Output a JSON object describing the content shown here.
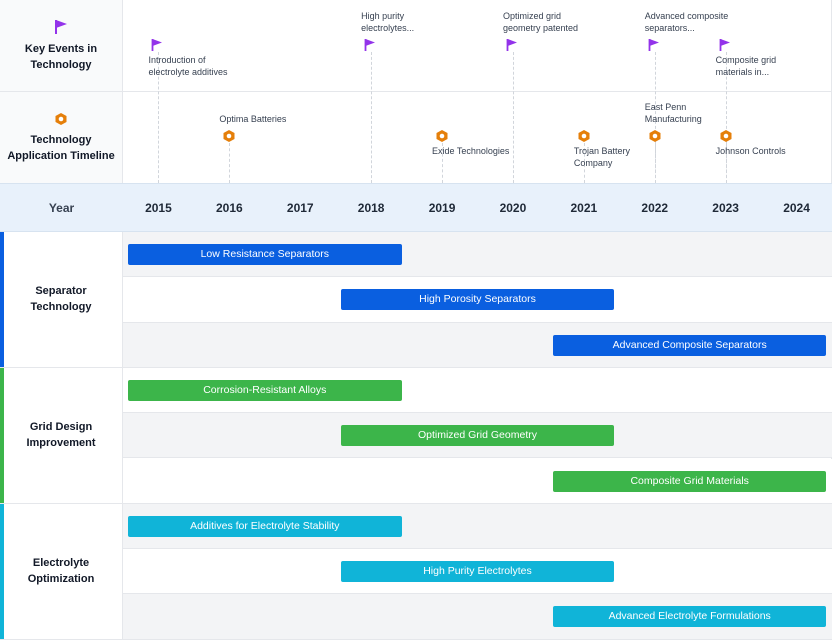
{
  "chart_data": {
    "type": "timeline",
    "axis": {
      "title": "Year",
      "years": [
        2015,
        2016,
        2017,
        2018,
        2019,
        2020,
        2021,
        2022,
        2023,
        2024
      ],
      "range": [
        2014.5,
        2024.5
      ]
    },
    "key_events": {
      "title": "Key Events in Technology",
      "items": [
        {
          "year": 2015,
          "lines": [
            "Introduction of",
            "electrolyte additives"
          ],
          "label_pos": "below"
        },
        {
          "year": 2018,
          "lines": [
            "High purity",
            "electrolytes..."
          ],
          "label_pos": "above"
        },
        {
          "year": 2020,
          "lines": [
            "Optimized grid",
            "geometry patented"
          ],
          "label_pos": "above"
        },
        {
          "year": 2022,
          "lines": [
            "Advanced composite",
            "separators..."
          ],
          "label_pos": "above"
        },
        {
          "year": 2023,
          "lines": [
            "Composite grid",
            "materials in..."
          ],
          "label_pos": "below"
        }
      ]
    },
    "applications": {
      "title": "Technology Application Timeline",
      "items": [
        {
          "year": 2016,
          "lines": [
            "Optima Batteries"
          ],
          "label_pos": "above"
        },
        {
          "year": 2019,
          "lines": [
            "Exide Technologies"
          ],
          "label_pos": "below"
        },
        {
          "year": 2021,
          "lines": [
            "Trojan Battery",
            "Company"
          ],
          "label_pos": "below"
        },
        {
          "year": 2022,
          "lines": [
            "East Penn",
            "Manufacturing"
          ],
          "label_pos": "above"
        },
        {
          "year": 2023,
          "lines": [
            "Johnson Controls"
          ],
          "label_pos": "below"
        }
      ]
    },
    "categories": [
      {
        "name": "Separator Technology",
        "color": "#0a5fe0",
        "bars": [
          {
            "label": "Low Resistance Separators",
            "start": 2014.5,
            "end": 2018.5
          },
          {
            "label": "High Porosity Separators",
            "start": 2017.5,
            "end": 2021.5
          },
          {
            "label": "Advanced Composite Separators",
            "start": 2020.5,
            "end": 2024.5
          }
        ]
      },
      {
        "name": "Grid Design Improvement",
        "color": "#3cb54a",
        "bars": [
          {
            "label": "Corrosion-Resistant Alloys",
            "start": 2014.5,
            "end": 2018.5
          },
          {
            "label": "Optimized Grid Geometry",
            "start": 2017.5,
            "end": 2021.5
          },
          {
            "label": "Composite Grid Materials",
            "start": 2020.5,
            "end": 2024.5
          }
        ]
      },
      {
        "name": "Electrolyte Optimization",
        "color": "#10b4d8",
        "bars": [
          {
            "label": "Additives for Electrolyte Stability",
            "start": 2014.5,
            "end": 2018.5
          },
          {
            "label": "High Purity Electrolytes",
            "start": 2017.5,
            "end": 2021.5
          },
          {
            "label": "Advanced Electrolyte Formulations",
            "start": 2020.5,
            "end": 2024.5
          }
        ]
      }
    ],
    "colors": {
      "flag": "#9333ea",
      "application": "#e57f0a"
    },
    "icons": {
      "events": "flag-icon",
      "applications": "hexagon-icon"
    }
  }
}
